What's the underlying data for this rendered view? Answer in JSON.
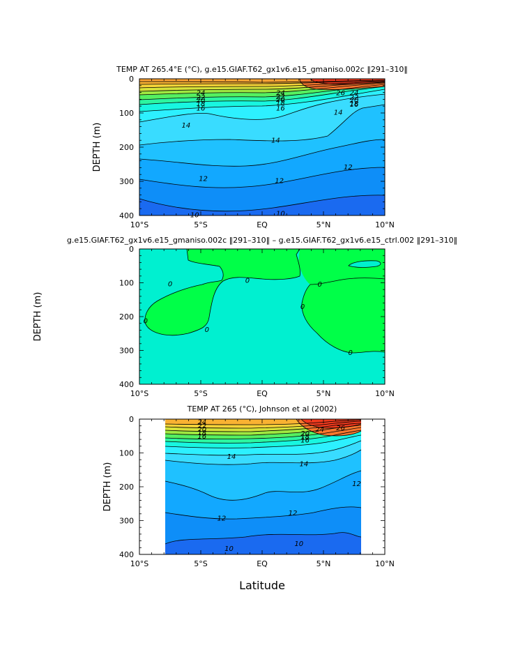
{
  "x_label": "Latitude",
  "panels": [
    {
      "title": "TEMP AT 265.4°E (°C), g.e15.GIAF.T62_gx1v6.e15_gmaniso.002c ‖291–310‖",
      "ylabel": "DEPTH (m)"
    },
    {
      "title": "g.e15.GIAF.T62_gx1v6.e15_gmaniso.002c ‖291–310‖ – g.e15.GIAF.T62_gx1v6.e15_ctrl.002 ‖291–310‖",
      "ylabel": "DEPTH (m)"
    },
    {
      "title": "TEMP AT 265 (°C), Johnson et al (2002)",
      "ylabel": "DEPTH (m)"
    }
  ],
  "chart_data": [
    {
      "type": "contour",
      "variable": "temperature",
      "units": "°C",
      "x_ticks": [
        "10°S",
        "5°S",
        "EQ",
        "5°N",
        "10°N"
      ],
      "y_ticks": [
        "0",
        "100",
        "200",
        "300",
        "400"
      ],
      "xlim": [
        -10,
        10
      ],
      "ylim": [
        400,
        0
      ],
      "levels": [
        10,
        11,
        12,
        13,
        14,
        15,
        16,
        17,
        18,
        19,
        20,
        21,
        22,
        23,
        24,
        25,
        26,
        27
      ],
      "contour_labels": [
        {
          "text": "24",
          "lat": -5.0,
          "depth": 41
        },
        {
          "text": "24",
          "lat": 1.5,
          "depth": 41
        },
        {
          "text": "26",
          "lat": 6.4,
          "depth": 41
        },
        {
          "text": "24",
          "lat": 7.5,
          "depth": 41
        },
        {
          "text": "22",
          "lat": -5.0,
          "depth": 54
        },
        {
          "text": "22",
          "lat": 1.5,
          "depth": 52
        },
        {
          "text": "22",
          "lat": 7.5,
          "depth": 54
        },
        {
          "text": "20",
          "lat": -5.0,
          "depth": 62
        },
        {
          "text": "20",
          "lat": 1.5,
          "depth": 60
        },
        {
          "text": "20",
          "lat": 7.5,
          "depth": 62
        },
        {
          "text": "18",
          "lat": -5.0,
          "depth": 72
        },
        {
          "text": "18",
          "lat": 1.5,
          "depth": 70
        },
        {
          "text": "18",
          "lat": 7.5,
          "depth": 72
        },
        {
          "text": "16",
          "lat": -5.0,
          "depth": 86
        },
        {
          "text": "16",
          "lat": 1.5,
          "depth": 86
        },
        {
          "text": "16",
          "lat": 7.5,
          "depth": 74
        },
        {
          "text": "14",
          "lat": -6.2,
          "depth": 136
        },
        {
          "text": "14",
          "lat": 1.1,
          "depth": 180
        },
        {
          "text": "14",
          "lat": 6.2,
          "depth": 98
        },
        {
          "text": "12",
          "lat": -4.8,
          "depth": 292
        },
        {
          "text": "12",
          "lat": 1.4,
          "depth": 298
        },
        {
          "text": "12",
          "lat": 7.0,
          "depth": 258
        },
        {
          "text": "10",
          "lat": -5.5,
          "depth": 398
        },
        {
          "text": "10",
          "lat": 1.5,
          "depth": 394
        }
      ]
    },
    {
      "type": "contour",
      "variable": "temperature difference",
      "x_ticks": [
        "10°S",
        "5°S",
        "EQ",
        "5°N",
        "10°N"
      ],
      "y_ticks": [
        "0",
        "100",
        "200",
        "300",
        "400"
      ],
      "xlim": [
        -10,
        10
      ],
      "ylim": [
        400,
        0
      ],
      "levels": [
        0
      ],
      "contour_labels": [
        {
          "text": "0",
          "lat": -7.5,
          "depth": 103
        },
        {
          "text": "0",
          "lat": -9.5,
          "depth": 212
        },
        {
          "text": "0",
          "lat": -4.5,
          "depth": 238
        },
        {
          "text": "0",
          "lat": -1.2,
          "depth": 93
        },
        {
          "text": "0",
          "lat": 3.3,
          "depth": 170
        },
        {
          "text": "0",
          "lat": 4.7,
          "depth": 104
        },
        {
          "text": "0",
          "lat": 7.2,
          "depth": 306
        }
      ]
    },
    {
      "type": "contour",
      "variable": "temperature",
      "units": "°C",
      "x_ticks": [
        "10°S",
        "5°S",
        "EQ",
        "5°N",
        "10°N"
      ],
      "y_ticks": [
        "0",
        "100",
        "200",
        "300",
        "400"
      ],
      "xlim": [
        -10,
        10
      ],
      "ylim": [
        400,
        0
      ],
      "data_lat_range": [
        -8,
        8
      ],
      "levels": [
        10,
        11,
        12,
        13,
        14,
        15,
        16,
        17,
        18,
        19,
        20,
        21,
        22,
        23,
        24,
        25,
        26,
        27
      ],
      "contour_labels": [
        {
          "text": "24",
          "lat": -4.9,
          "depth": 8
        },
        {
          "text": "22",
          "lat": -4.9,
          "depth": 20
        },
        {
          "text": "20",
          "lat": -4.9,
          "depth": 30
        },
        {
          "text": "18",
          "lat": -4.9,
          "depth": 40
        },
        {
          "text": "16",
          "lat": -4.9,
          "depth": 50
        },
        {
          "text": "26",
          "lat": 6.4,
          "depth": 26
        },
        {
          "text": "24",
          "lat": 4.7,
          "depth": 30
        },
        {
          "text": "20",
          "lat": 3.5,
          "depth": 42
        },
        {
          "text": "18",
          "lat": 3.5,
          "depth": 52
        },
        {
          "text": "16",
          "lat": 3.5,
          "depth": 62
        },
        {
          "text": "14",
          "lat": -2.5,
          "depth": 110
        },
        {
          "text": "14",
          "lat": 3.4,
          "depth": 132
        },
        {
          "text": "12",
          "lat": 7.7,
          "depth": 191
        },
        {
          "text": "12",
          "lat": -3.3,
          "depth": 293
        },
        {
          "text": "12",
          "lat": 2.5,
          "depth": 277
        },
        {
          "text": "10",
          "lat": -2.7,
          "depth": 382
        },
        {
          "text": "10",
          "lat": 3.0,
          "depth": 368
        }
      ]
    }
  ]
}
